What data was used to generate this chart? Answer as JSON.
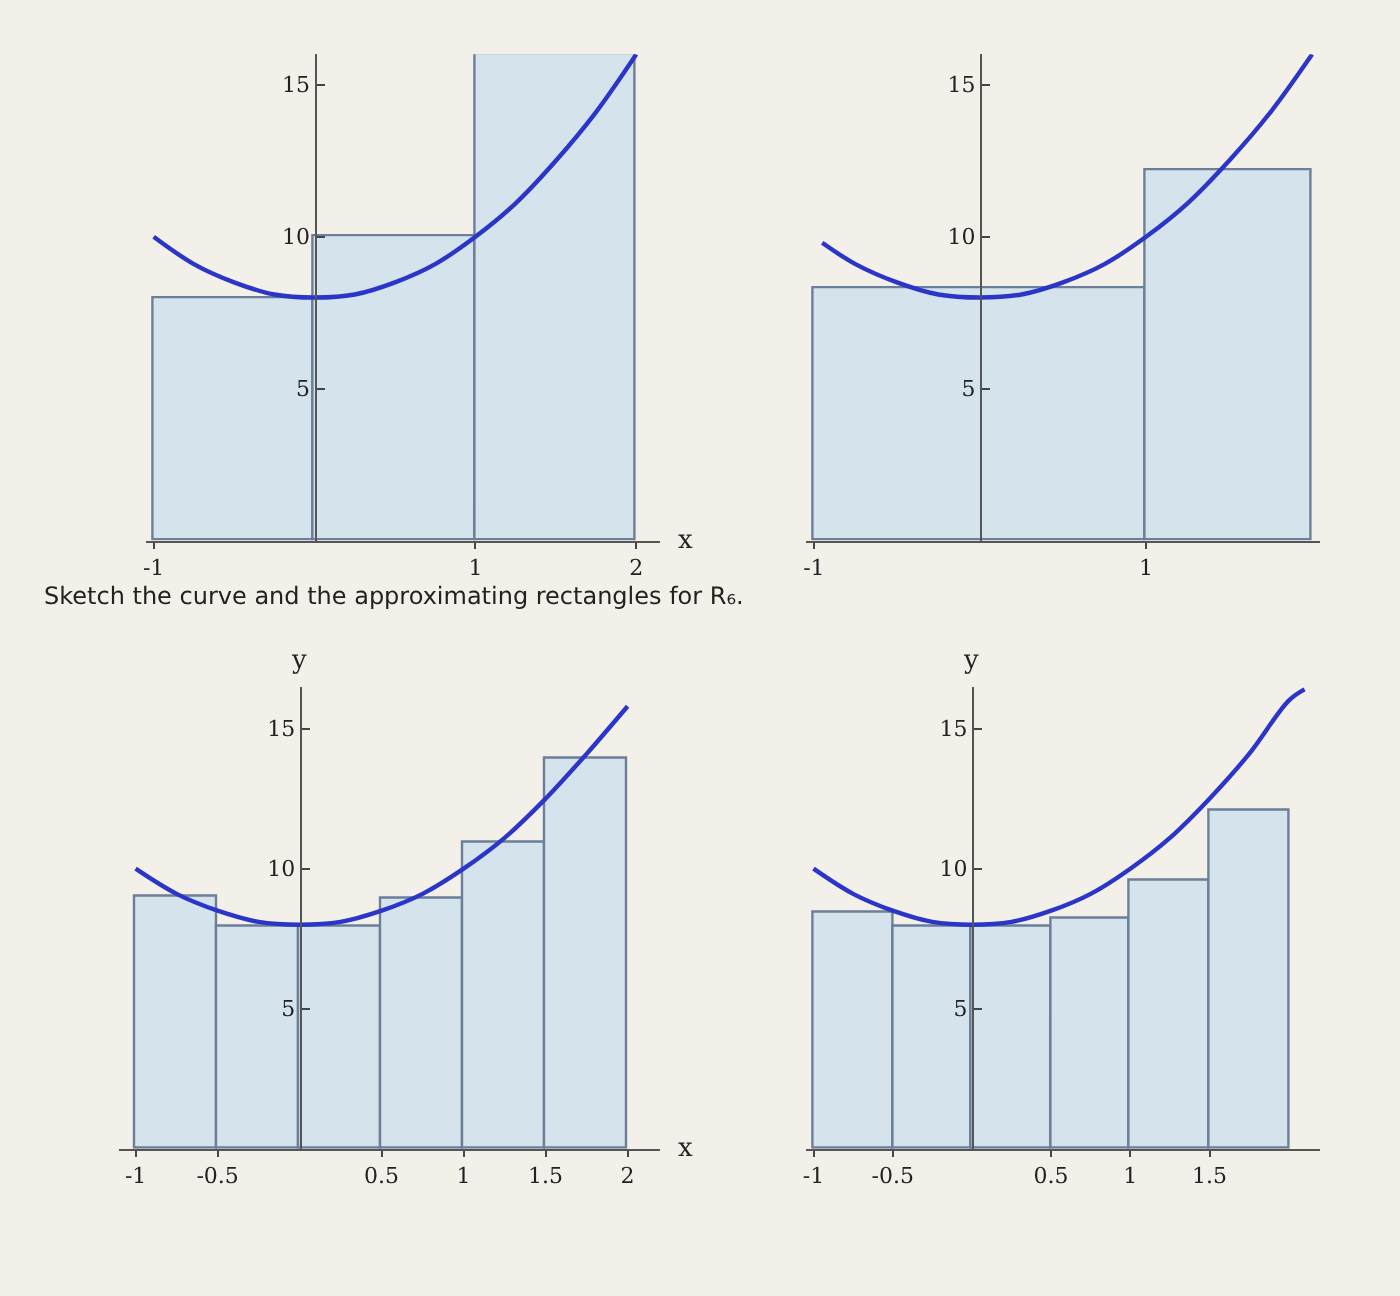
{
  "chart_data": [
    {
      "type": "histogram",
      "bins": [
        -1,
        0,
        1,
        2
      ],
      "values": [
        8,
        10,
        16
      ],
      "color": "#d5e3ec",
      "xlim": [
        -1.05,
        2.15
      ],
      "ylim": [
        0,
        16
      ],
      "xticks": [
        -1,
        1,
        2
      ],
      "yticks": [
        5,
        10,
        15
      ],
      "xlabel": "x",
      "series": [
        {
          "type": "line",
          "color": "#2b35c8",
          "x": [
            -1,
            -0.75,
            -0.5,
            -0.25,
            0,
            0.25,
            0.5,
            0.75,
            1,
            1.25,
            1.5,
            1.75,
            2
          ],
          "values": [
            10,
            9.1,
            8.5,
            8.1,
            8,
            8.1,
            8.5,
            9.1,
            10,
            11.1,
            12.5,
            14.1,
            16
          ]
        }
      ]
    },
    {
      "type": "histogram",
      "bins": [
        -1,
        1,
        2
      ],
      "values": [
        8.3,
        12.2
      ],
      "color": "#d5e3ec",
      "xlim": [
        -1.05,
        2.05
      ],
      "ylim": [
        0,
        16
      ],
      "xticks": [
        -1,
        1
      ],
      "yticks": [
        5,
        10,
        15
      ],
      "series": [
        {
          "type": "line",
          "color": "#2b35c8",
          "x": [
            -0.95,
            -0.75,
            -0.5,
            -0.25,
            0,
            0.25,
            0.5,
            0.75,
            1,
            1.25,
            1.5,
            1.75,
            2
          ],
          "values": [
            9.8,
            9.1,
            8.5,
            8.1,
            8,
            8.1,
            8.5,
            9.1,
            10,
            11.1,
            12.5,
            14.1,
            16
          ]
        }
      ]
    },
    {
      "type": "histogram",
      "title": "Sketch the curve and the approximating rectangles for R₆.",
      "bins": [
        -1,
        -0.5,
        0,
        0.5,
        1,
        1.5,
        2
      ],
      "values": [
        9,
        7.9,
        7.9,
        8.9,
        10.9,
        13.9
      ],
      "color": "#d5e3ec",
      "xlim": [
        -1.1,
        2.2
      ],
      "ylim": [
        0,
        16.5
      ],
      "xticks": [
        -1,
        -0.5,
        0.5,
        1,
        1.5,
        2
      ],
      "yticks": [
        5,
        10,
        15
      ],
      "xlabel": "x",
      "ylabel": "y",
      "series": [
        {
          "type": "line",
          "color": "#2b35c8",
          "x": [
            -1,
            -0.75,
            -0.5,
            -0.25,
            0,
            0.25,
            0.5,
            0.75,
            1,
            1.25,
            1.5,
            1.75,
            2
          ],
          "values": [
            10,
            9.1,
            8.5,
            8.1,
            8,
            8.1,
            8.5,
            9.1,
            10,
            11.1,
            12.5,
            14.1,
            15.8
          ]
        }
      ]
    },
    {
      "type": "histogram",
      "bins": [
        -1,
        -0.5,
        0,
        0.5,
        1,
        1.5,
        2
      ],
      "values": [
        8.4,
        7.9,
        7.9,
        8.2,
        9.6,
        12.1
      ],
      "color": "#d5e3ec",
      "xlim": [
        -1.05,
        2.2
      ],
      "ylim": [
        0,
        16.5
      ],
      "xticks": [
        -1,
        -0.5,
        0.5,
        1,
        1.5
      ],
      "yticks": [
        5,
        10,
        15
      ],
      "ylabel": "y",
      "series": [
        {
          "type": "line",
          "color": "#2b35c8",
          "x": [
            -1,
            -0.75,
            -0.5,
            -0.25,
            0,
            0.25,
            0.5,
            0.75,
            1,
            1.25,
            1.5,
            1.75,
            2,
            2.1
          ],
          "values": [
            10,
            9.1,
            8.5,
            8.1,
            8,
            8.1,
            8.5,
            9.1,
            10,
            11.1,
            12.5,
            14.1,
            16,
            16.4
          ]
        }
      ]
    }
  ]
}
